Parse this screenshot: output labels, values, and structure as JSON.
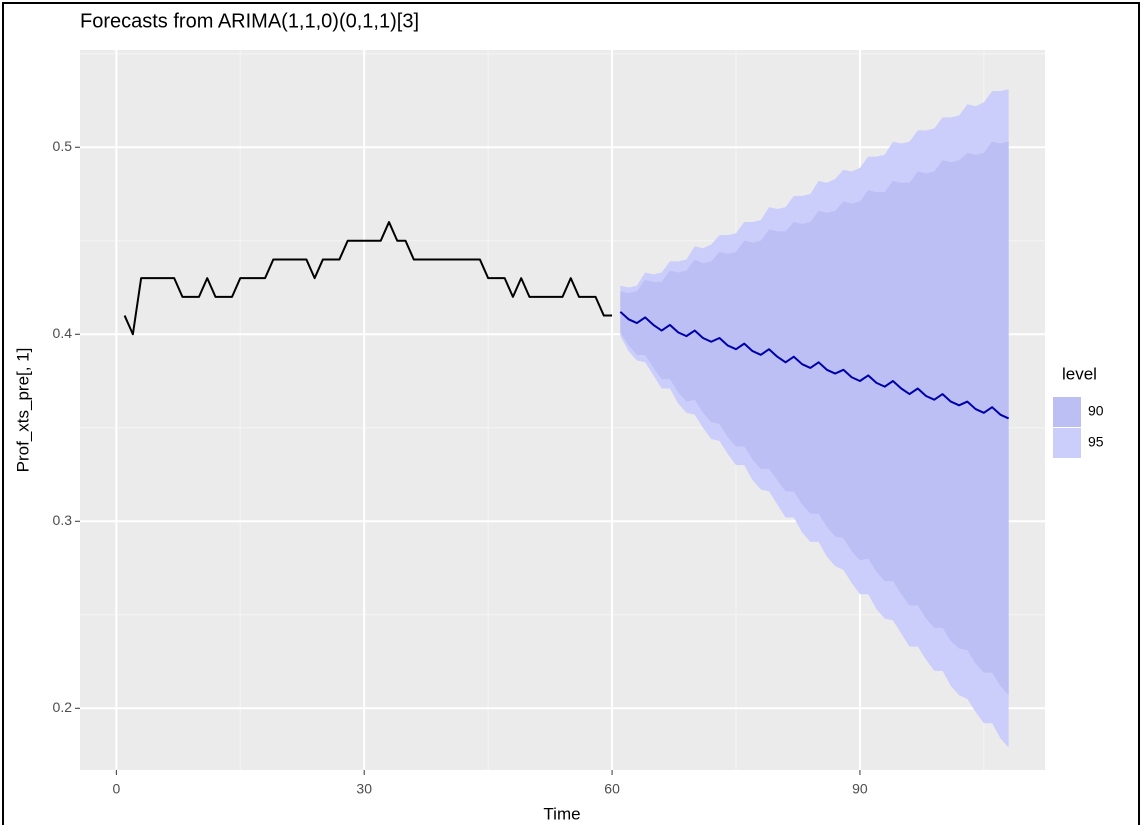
{
  "chart_data": {
    "type": "line",
    "title": "Forecasts from ARIMA(1,1,0)(0,1,1)[3]",
    "x_label": "Time",
    "y_label": "Prof_xts_pre[, 1]",
    "xlim": [
      -4.4,
      112.4
    ],
    "ylim": [
      0.167,
      0.552
    ],
    "xticks": [
      0,
      30,
      60,
      90
    ],
    "yticks": [
      0.2,
      0.3,
      0.4,
      0.5
    ],
    "grid": true,
    "legend_title": "level",
    "series": [
      {
        "color": "#000000",
        "x": [
          1,
          2,
          3,
          4,
          5,
          6,
          7,
          8,
          9,
          10,
          11,
          12,
          13,
          14,
          15,
          16,
          17,
          18,
          19,
          20,
          21,
          22,
          23,
          24,
          25,
          26,
          27,
          28,
          29,
          30,
          31,
          32,
          33,
          34,
          35,
          36,
          37,
          38,
          39,
          40,
          41,
          42,
          43,
          44,
          45,
          46,
          47,
          48,
          49,
          50,
          51,
          52,
          53,
          54,
          55,
          56,
          57,
          58,
          59,
          60
        ],
        "values": [
          0.41,
          0.4,
          0.43,
          0.43,
          0.43,
          0.43,
          0.43,
          0.42,
          0.42,
          0.42,
          0.43,
          0.42,
          0.42,
          0.42,
          0.43,
          0.43,
          0.43,
          0.43,
          0.44,
          0.44,
          0.44,
          0.44,
          0.44,
          0.43,
          0.44,
          0.44,
          0.44,
          0.45,
          0.45,
          0.45,
          0.45,
          0.45,
          0.46,
          0.45,
          0.45,
          0.44,
          0.44,
          0.44,
          0.44,
          0.44,
          0.44,
          0.44,
          0.44,
          0.44,
          0.43,
          0.43,
          0.43,
          0.42,
          0.43,
          0.42,
          0.42,
          0.42,
          0.42,
          0.42,
          0.43,
          0.42,
          0.42,
          0.42,
          0.41,
          0.41
        ]
      },
      {
        "color": "#0000aa",
        "x": [
          61,
          62,
          63,
          64,
          65,
          66,
          67,
          68,
          69,
          70,
          71,
          72,
          73,
          74,
          75,
          76,
          77,
          78,
          79,
          80,
          81,
          82,
          83,
          84,
          85,
          86,
          87,
          88,
          89,
          90,
          91,
          92,
          93,
          94,
          95,
          96,
          97,
          98,
          99,
          100,
          101,
          102,
          103,
          104,
          105,
          106,
          107,
          108
        ],
        "values": [
          0.412,
          0.408,
          0.406,
          0.409,
          0.405,
          0.402,
          0.405,
          0.401,
          0.399,
          0.402,
          0.398,
          0.396,
          0.398,
          0.394,
          0.392,
          0.395,
          0.391,
          0.389,
          0.392,
          0.388,
          0.385,
          0.388,
          0.384,
          0.382,
          0.385,
          0.381,
          0.379,
          0.381,
          0.377,
          0.375,
          0.378,
          0.374,
          0.372,
          0.375,
          0.371,
          0.368,
          0.371,
          0.367,
          0.365,
          0.368,
          0.364,
          0.362,
          0.364,
          0.36,
          0.358,
          0.361,
          0.357,
          0.355
        ]
      }
    ],
    "bands": [
      {
        "name": "95",
        "color": "#cbcefa",
        "upper": [
          0.426,
          0.425,
          0.426,
          0.433,
          0.432,
          0.433,
          0.439,
          0.439,
          0.44,
          0.447,
          0.446,
          0.448,
          0.453,
          0.453,
          0.454,
          0.46,
          0.46,
          0.461,
          0.468,
          0.467,
          0.468,
          0.474,
          0.474,
          0.475,
          0.482,
          0.481,
          0.483,
          0.488,
          0.487,
          0.489,
          0.495,
          0.495,
          0.496,
          0.503,
          0.502,
          0.503,
          0.509,
          0.509,
          0.51,
          0.516,
          0.516,
          0.517,
          0.523,
          0.522,
          0.524,
          0.53,
          0.53,
          0.531
        ],
        "lower": [
          0.399,
          0.391,
          0.386,
          0.385,
          0.378,
          0.371,
          0.371,
          0.363,
          0.358,
          0.357,
          0.35,
          0.344,
          0.343,
          0.336,
          0.33,
          0.33,
          0.322,
          0.317,
          0.316,
          0.309,
          0.302,
          0.302,
          0.294,
          0.289,
          0.289,
          0.281,
          0.276,
          0.274,
          0.267,
          0.261,
          0.261,
          0.253,
          0.248,
          0.247,
          0.24,
          0.233,
          0.233,
          0.226,
          0.22,
          0.22,
          0.212,
          0.207,
          0.205,
          0.198,
          0.192,
          0.192,
          0.184,
          0.179
        ]
      },
      {
        "name": "90",
        "color": "#bbbff4",
        "upper": [
          0.423,
          0.422,
          0.423,
          0.429,
          0.428,
          0.428,
          0.434,
          0.433,
          0.434,
          0.44,
          0.438,
          0.439,
          0.444,
          0.443,
          0.444,
          0.45,
          0.449,
          0.45,
          0.456,
          0.455,
          0.455,
          0.46,
          0.459,
          0.46,
          0.466,
          0.465,
          0.466,
          0.471,
          0.47,
          0.471,
          0.477,
          0.476,
          0.476,
          0.482,
          0.481,
          0.481,
          0.487,
          0.486,
          0.487,
          0.493,
          0.492,
          0.493,
          0.497,
          0.496,
          0.497,
          0.503,
          0.502,
          0.503
        ],
        "lower": [
          0.401,
          0.394,
          0.389,
          0.389,
          0.382,
          0.376,
          0.376,
          0.369,
          0.364,
          0.365,
          0.358,
          0.353,
          0.352,
          0.345,
          0.34,
          0.34,
          0.333,
          0.328,
          0.328,
          0.322,
          0.316,
          0.316,
          0.309,
          0.304,
          0.304,
          0.297,
          0.292,
          0.291,
          0.284,
          0.279,
          0.28,
          0.273,
          0.268,
          0.268,
          0.261,
          0.255,
          0.255,
          0.248,
          0.243,
          0.243,
          0.236,
          0.232,
          0.231,
          0.224,
          0.219,
          0.219,
          0.212,
          0.207
        ]
      }
    ]
  }
}
